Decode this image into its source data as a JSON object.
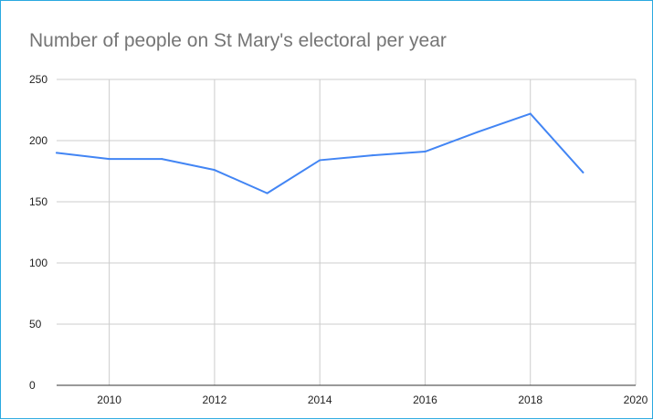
{
  "chart_data": {
    "type": "line",
    "title": "Number of people on St Mary's electoral per year",
    "xlabel": "",
    "ylabel": "",
    "xlim": [
      2009,
      2020
    ],
    "ylim": [
      0,
      250
    ],
    "x_ticks": [
      2010,
      2012,
      2014,
      2016,
      2018,
      2020
    ],
    "y_ticks": [
      0,
      50,
      100,
      150,
      200,
      250
    ],
    "grid": true,
    "legend": "none",
    "series": [
      {
        "color": "#4285f4",
        "x": [
          2009,
          2010,
          2011,
          2012,
          2013,
          2014,
          2015,
          2016,
          2017,
          2018,
          2019
        ],
        "values": [
          190,
          185,
          185,
          176,
          157,
          184,
          188,
          191,
          207,
          222,
          174
        ]
      }
    ]
  }
}
